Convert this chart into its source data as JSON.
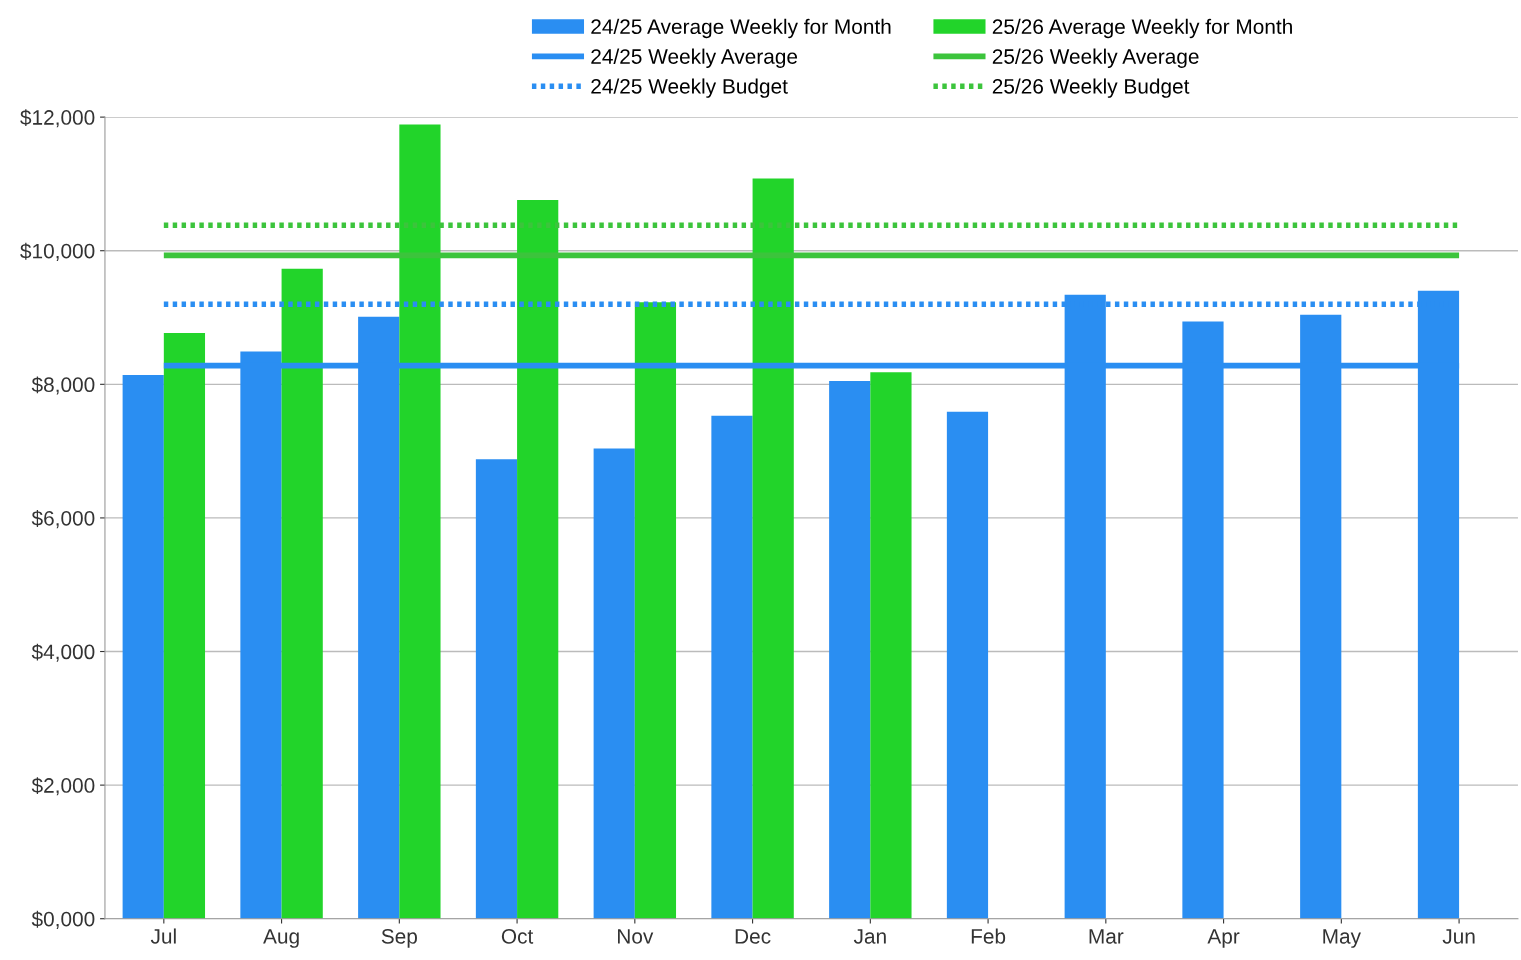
{
  "chart_data": {
    "type": "bar",
    "categories": [
      "Jul",
      "Aug",
      "Sep",
      "Oct",
      "Nov",
      "Dec",
      "Jan",
      "Feb",
      "Mar",
      "Apr",
      "May",
      "Jun"
    ],
    "series": [
      {
        "name": "24/25 Average Weekly for Month",
        "color": "#2a8ef2",
        "values": [
          8140,
          8490,
          9010,
          6880,
          7040,
          7530,
          8050,
          7590,
          9340,
          8940,
          9040,
          9400
        ]
      },
      {
        "name": "25/26 Average Weekly for Month",
        "color": "#22d42a",
        "values": [
          8770,
          9730,
          11890,
          10760,
          9230,
          11080,
          8180,
          null,
          null,
          null,
          null,
          null
        ]
      }
    ],
    "ref_lines": [
      {
        "axis": "y",
        "value": 8280,
        "label": "24/25 Weekly Average",
        "color": "#2a8ef2",
        "line_style": "solid"
      },
      {
        "axis": "y",
        "value": 9200,
        "label": "24/25 Weekly Budget",
        "color": "#2a8ef2",
        "line_style": "dotted"
      },
      {
        "axis": "y",
        "value": 9930,
        "label": "25/26 Weekly Average",
        "color": "#3cc43c",
        "line_style": "solid"
      },
      {
        "axis": "y",
        "value": 10380,
        "label": "25/26 Weekly Budget",
        "color": "#3cc43c",
        "line_style": "dotted"
      }
    ],
    "ylim": [
      0,
      12000
    ],
    "yticks": [
      {
        "value": 0,
        "label": "$0,000"
      },
      {
        "value": 2000,
        "label": "$2,000"
      },
      {
        "value": 4000,
        "label": "$4,000"
      },
      {
        "value": 6000,
        "label": "$6,000"
      },
      {
        "value": 8000,
        "label": "$8,000"
      },
      {
        "value": 10000,
        "label": "$10,000"
      },
      {
        "value": 12000,
        "label": "$12,000"
      }
    ],
    "grid": "y",
    "legend": "top"
  }
}
